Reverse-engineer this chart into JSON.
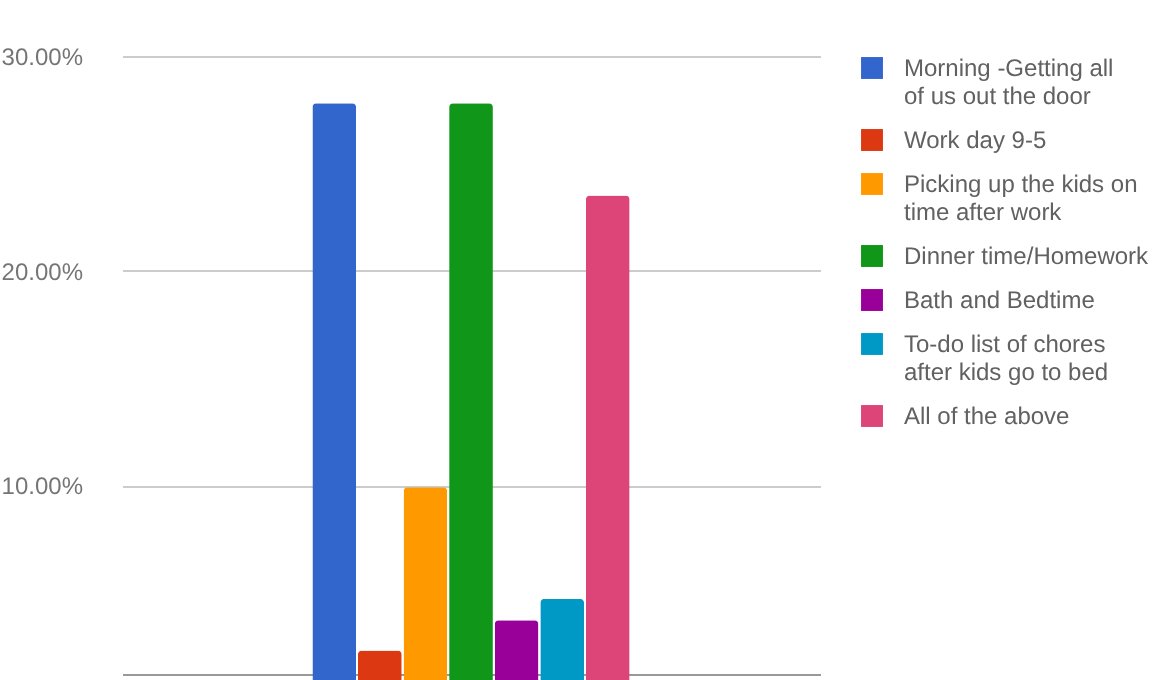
{
  "chart_data": {
    "type": "bar",
    "categories": [
      null
    ],
    "series": [
      {
        "name": "Morning -Getting all of us out the door",
        "color": "#3366cc",
        "values": [
          27.8
        ]
      },
      {
        "name": "Work day 9-5",
        "color": "#dc3912",
        "values": [
          2.3
        ]
      },
      {
        "name": "Picking up the kids on time after work",
        "color": "#ff9900",
        "values": [
          9.9
        ]
      },
      {
        "name": "Dinner time/Homework",
        "color": "#109618",
        "values": [
          27.8
        ]
      },
      {
        "name": "Bath and Bedtime",
        "color": "#990099",
        "values": [
          3.7
        ]
      },
      {
        "name": "To-do list of chores after kids go to bed",
        "color": "#0099c6",
        "values": [
          4.7
        ]
      },
      {
        "name": "All of the above",
        "color": "#dd4477",
        "values": [
          23.5
        ]
      }
    ],
    "ylim": [
      1.2,
      30
    ],
    "yticks": [
      {
        "value": 10,
        "label": "10.00%"
      },
      {
        "value": 20,
        "label": "20.00%"
      },
      {
        "value": 30,
        "label": "30.00%"
      }
    ],
    "grid": "y",
    "legend": "top right"
  }
}
